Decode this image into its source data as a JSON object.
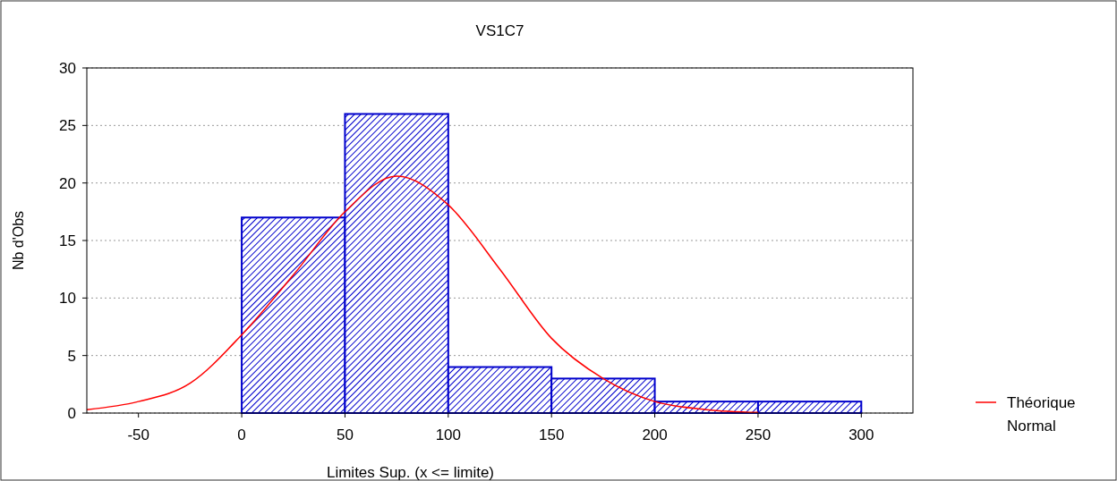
{
  "chart_data": {
    "type": "histogram",
    "title": "VS1C7",
    "xlabel": "Limites Sup. (x <= limite)",
    "ylabel": "Nb d'Obs",
    "bins": [
      -50,
      0,
      50,
      100,
      150,
      200,
      250,
      300
    ],
    "values": [
      0,
      17,
      26,
      4,
      3,
      1,
      1
    ],
    "color": "#0000cc",
    "series": [
      {
        "type": "line",
        "name": "Théorique Normal",
        "color": "#ff0000",
        "x": [
          -75,
          -50,
          -25,
          0,
          25,
          50,
          75,
          100,
          125,
          150,
          175,
          200,
          225,
          250
        ],
        "values": [
          0.3,
          1.0,
          2.6,
          6.8,
          12,
          17.5,
          20.6,
          18.1,
          12.5,
          6.5,
          3.0,
          1.0,
          0.3,
          0.05
        ]
      }
    ],
    "xlim": [
      -75,
      325
    ],
    "ylim": [
      0,
      30
    ],
    "xticks": [
      -50,
      0,
      50,
      100,
      150,
      200,
      250,
      300
    ],
    "yticks": [
      0,
      5,
      10,
      15,
      20,
      25,
      30
    ],
    "grid": "y",
    "legend": "right"
  }
}
